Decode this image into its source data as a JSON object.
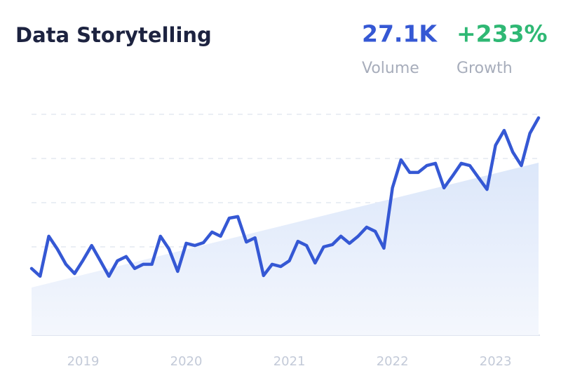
{
  "chart_data": {
    "type": "line",
    "title": "Data Storytelling",
    "metrics": [
      {
        "value": "27.1K",
        "label": "Volume",
        "color": "#3558d4"
      },
      {
        "value": "+233%",
        "label": "Growth",
        "color": "#2fb874"
      }
    ],
    "x": [
      2018.5,
      2018.583,
      2018.667,
      2018.75,
      2018.833,
      2018.917,
      2019,
      2019.083,
      2019.167,
      2019.25,
      2019.333,
      2019.417,
      2019.5,
      2019.583,
      2019.667,
      2019.75,
      2019.833,
      2019.917,
      2020,
      2020.083,
      2020.167,
      2020.25,
      2020.333,
      2020.417,
      2020.5,
      2020.583,
      2020.667,
      2020.75,
      2020.833,
      2020.917,
      2021,
      2021.083,
      2021.167,
      2021.25,
      2021.333,
      2021.417,
      2021.5,
      2021.583,
      2021.667,
      2021.75,
      2021.833,
      2021.917,
      2022,
      2022.083,
      2022.167,
      2022.25,
      2022.333,
      2022.417,
      2022.5,
      2022.583,
      2022.667,
      2022.75,
      2022.833,
      2022.917,
      2023,
      2023.083,
      2023.167,
      2023.25,
      2023.333,
      2023.417
    ],
    "values": [
      30.2,
      26.7,
      44.8,
      39.0,
      32.1,
      27.9,
      34.0,
      40.6,
      33.7,
      26.7,
      33.7,
      35.6,
      30.2,
      32.1,
      32.1,
      44.8,
      39.0,
      28.9,
      41.6,
      40.6,
      41.9,
      46.7,
      44.8,
      53.0,
      53.7,
      42.2,
      44.1,
      27.0,
      32.1,
      31.1,
      33.7,
      42.5,
      40.6,
      32.7,
      40.0,
      41.0,
      44.8,
      41.6,
      44.8,
      48.9,
      47.0,
      39.4,
      66.7,
      79.4,
      73.7,
      73.7,
      76.8,
      77.8,
      66.7,
      72.1,
      77.8,
      76.8,
      71.4,
      66.0,
      86.0,
      92.7,
      82.9,
      76.8,
      91.4,
      98.4
    ],
    "color": "#3558d4",
    "trend": {
      "x": [
        2018.5,
        2023.417
      ],
      "values": [
        21.6,
        78.1
      ],
      "color": "#dfe9fb"
    },
    "xlim": [
      2018.5,
      2023.417
    ],
    "xticks": [
      2019,
      2020,
      2021,
      2022,
      2023
    ],
    "ylim": [
      0,
      100
    ],
    "yticks": [
      0,
      20,
      40,
      60,
      80,
      100
    ],
    "grid": true
  }
}
